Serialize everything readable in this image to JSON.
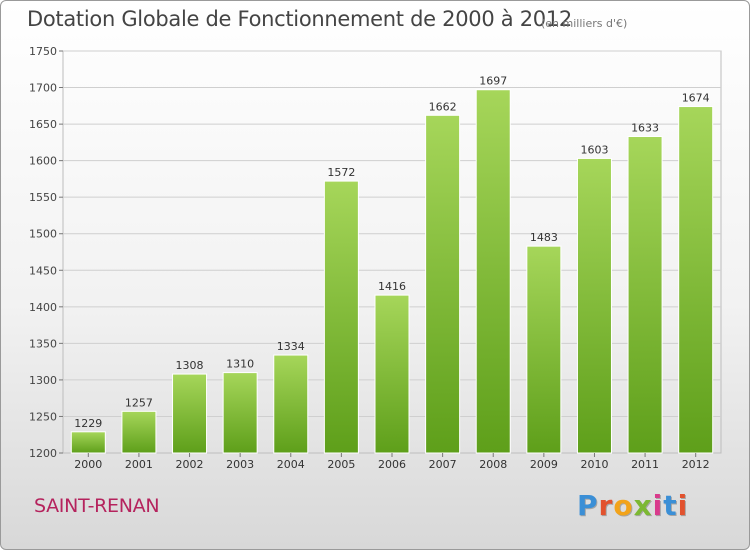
{
  "header": {
    "title": "Dotation Globale de Fonctionnement de 2000 à 2012",
    "unit": "(en milliers d'€)"
  },
  "footer": {
    "town": "SAINT-RENAN",
    "logo_letters": [
      "P",
      "r",
      "o",
      "x",
      "i",
      "t",
      "i"
    ],
    "logo_colors": [
      "#3b8fd6",
      "#e2522e",
      "#f2a31a",
      "#7cb833",
      "#d93b8c",
      "#3b8fd6",
      "#e2522e"
    ]
  },
  "chart_data": {
    "type": "bar",
    "categories": [
      "2000",
      "2001",
      "2002",
      "2003",
      "2004",
      "2005",
      "2006",
      "2007",
      "2008",
      "2009",
      "2010",
      "2011",
      "2012"
    ],
    "values": [
      1229,
      1257,
      1308,
      1310,
      1334,
      1572,
      1416,
      1662,
      1697,
      1483,
      1603,
      1633,
      1674
    ],
    "data_labels": [
      "1229",
      "1257",
      "1308",
      "1310",
      "1334",
      "1572",
      "1416",
      "1662",
      "1697",
      "1483",
      "1603",
      "1633",
      "1674"
    ],
    "y_ticks": [
      1200,
      1250,
      1300,
      1350,
      1400,
      1450,
      1500,
      1550,
      1600,
      1650,
      1700,
      1750
    ],
    "ylim": [
      1200,
      1750
    ],
    "title": "Dotation Globale de Fonctionnement de 2000 à 2012",
    "xlabel": "",
    "ylabel": "",
    "grid": true,
    "bar_color_top": "#a6d65a",
    "bar_color_bottom": "#5e9f1a"
  }
}
